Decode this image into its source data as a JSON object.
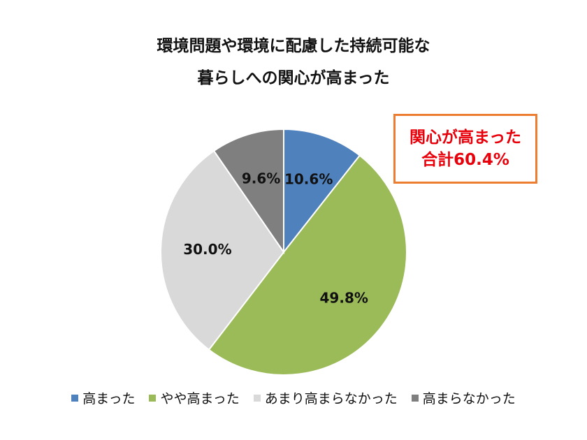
{
  "chart_data": {
    "type": "pie",
    "title_lines": [
      "環境問題や環境に配慮した持続可能な",
      "暮らしへの関心が高まった"
    ],
    "slices": [
      {
        "name": "高まった",
        "value": 10.6,
        "label": "10.6%",
        "color": "#4F81BD"
      },
      {
        "name": "やや高まった",
        "value": 49.8,
        "label": "49.8%",
        "color": "#9BBB59"
      },
      {
        "name": "あまり高まらなかった",
        "value": 30.0,
        "label": "30.0%",
        "color": "#D9D9D9"
      },
      {
        "name": "高まらなかった",
        "value": 9.6,
        "label": "9.6%",
        "color": "#7F7F7F"
      }
    ],
    "start": "12 o'clock",
    "direction": "clockwise",
    "legend_position": "bottom"
  },
  "callout": {
    "line1": "関心が高まった",
    "line2": "合計60.4%",
    "text_color": "#E8000B",
    "border_color": "#ED7D31"
  }
}
